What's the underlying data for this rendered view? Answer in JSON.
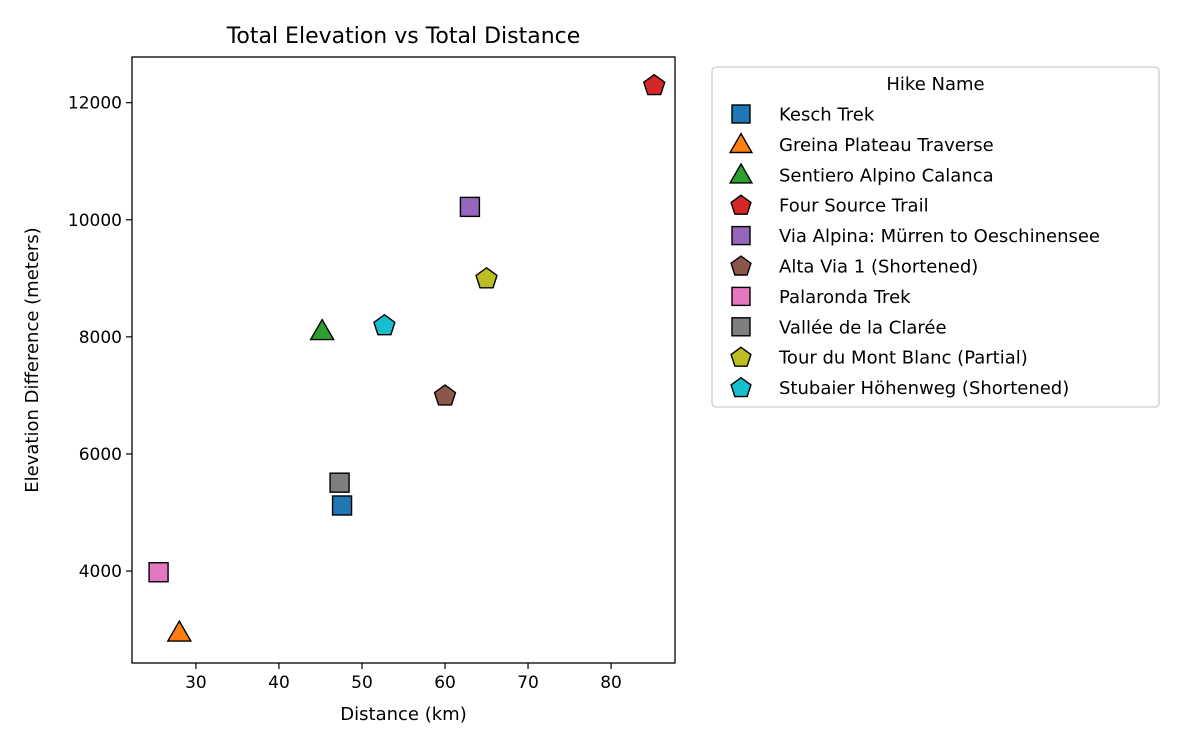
{
  "chart_data": {
    "type": "scatter",
    "title": "Total Elevation vs Total Distance",
    "xlabel": "Distance (km)",
    "ylabel": "Elevation Difference (meters)",
    "xlim": [
      22.3,
      87.7
    ],
    "ylim": [
      2430,
      12780
    ],
    "xticks": [
      30,
      40,
      50,
      60,
      70,
      80
    ],
    "yticks": [
      4000,
      6000,
      8000,
      10000,
      12000
    ],
    "grid": false,
    "legend": {
      "title": "Hike Name",
      "placement": "outside-right"
    },
    "series": [
      {
        "name": "Kesch Trek",
        "marker": "square",
        "color": "#1f77b4",
        "x": 47.6,
        "y": 5120
      },
      {
        "name": "Greina Plateau Traverse",
        "marker": "triangle",
        "color": "#ff7f0e",
        "x": 28.0,
        "y": 2950
      },
      {
        "name": "Sentiero Alpino Calanca",
        "marker": "triangle",
        "color": "#2ca02c",
        "x": 45.2,
        "y": 8100
      },
      {
        "name": "Four Source Trail",
        "marker": "pentagon",
        "color": "#d62728",
        "x": 85.2,
        "y": 12300
      },
      {
        "name": "Via Alpina: Mürren to Oeschinensee",
        "marker": "square",
        "color": "#9467bd",
        "x": 63.0,
        "y": 10220
      },
      {
        "name": "Alta Via 1 (Shortened)",
        "marker": "pentagon",
        "color": "#8c564b",
        "x": 60.0,
        "y": 7000
      },
      {
        "name": "Palaronda Trek",
        "marker": "square",
        "color": "#e377c2",
        "x": 25.5,
        "y": 3980
      },
      {
        "name": "Vallée de la Clarée",
        "marker": "square",
        "color": "#7f7f7f",
        "x": 47.3,
        "y": 5510
      },
      {
        "name": "Tour du Mont Blanc (Partial)",
        "marker": "pentagon",
        "color": "#bcbd22",
        "x": 65.0,
        "y": 9000
      },
      {
        "name": "Stubaier Höhenweg (Shortened)",
        "marker": "pentagon",
        "color": "#17becf",
        "x": 52.7,
        "y": 8200
      }
    ]
  }
}
